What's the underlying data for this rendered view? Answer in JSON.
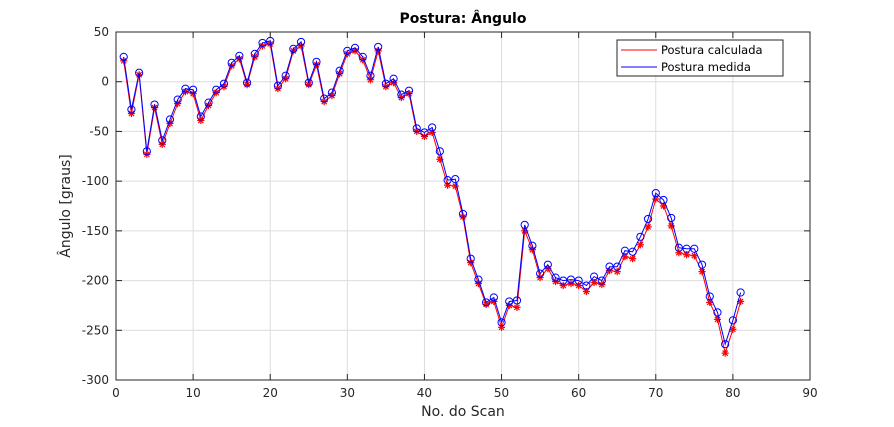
{
  "chart_data": {
    "type": "line",
    "title": "Postura: Ângulo",
    "xlabel": "No. do Scan",
    "ylabel": "Ângulo [graus]",
    "xlim": [
      0,
      90
    ],
    "ylim": [
      -300,
      50
    ],
    "xticks": [
      0,
      10,
      20,
      30,
      40,
      50,
      60,
      70,
      80,
      90
    ],
    "yticks": [
      50,
      0,
      -50,
      -100,
      -150,
      -200,
      -250,
      -300
    ],
    "grid": true,
    "legend_position": "top-right",
    "colors": {
      "series_calc": "#ff0000",
      "series_med": "#0000ff",
      "grid": "#dcdcdc",
      "axis": "#262626"
    },
    "x": [
      1,
      2,
      3,
      4,
      5,
      6,
      7,
      8,
      9,
      10,
      11,
      12,
      13,
      14,
      15,
      16,
      17,
      18,
      19,
      20,
      21,
      22,
      23,
      24,
      25,
      26,
      27,
      28,
      29,
      30,
      31,
      32,
      33,
      34,
      35,
      36,
      37,
      38,
      39,
      40,
      41,
      42,
      43,
      44,
      45,
      46,
      47,
      48,
      49,
      50,
      51,
      52,
      53,
      54,
      55,
      56,
      57,
      58,
      59,
      60,
      61,
      62,
      63,
      64,
      65,
      66,
      67,
      68,
      69,
      70,
      71,
      72,
      73,
      74,
      75,
      76,
      77,
      78,
      79,
      80,
      81
    ],
    "series": [
      {
        "name": "Postura calculada",
        "marker": "asterisk",
        "values": [
          21,
          -32,
          7,
          -73,
          -26,
          -63,
          -42,
          -22,
          -10,
          -12,
          -39,
          -24,
          -11,
          -5,
          16,
          23,
          -3,
          25,
          36,
          38,
          -7,
          3,
          31,
          36,
          -3,
          17,
          -20,
          -14,
          8,
          28,
          31,
          22,
          2,
          31,
          -5,
          -1,
          -16,
          -12,
          -50,
          -55,
          -51,
          -78,
          -104,
          -105,
          -136,
          -182,
          -203,
          -224,
          -221,
          -247,
          -225,
          -227,
          -150,
          -169,
          -197,
          -188,
          -201,
          -205,
          -203,
          -205,
          -211,
          -202,
          -204,
          -190,
          -191,
          -176,
          -178,
          -164,
          -146,
          -118,
          -125,
          -145,
          -172,
          -174,
          -175,
          -191,
          -222,
          -239,
          -273,
          -249,
          -221
        ]
      },
      {
        "name": "Postura medida",
        "marker": "circle",
        "values": [
          25,
          -28,
          9,
          -70,
          -23,
          -59,
          -38,
          -18,
          -7,
          -8,
          -35,
          -21,
          -8,
          -2,
          19,
          26,
          -1,
          28,
          39,
          41,
          -4,
          6,
          33,
          40,
          -1,
          20,
          -17,
          -11,
          11,
          31,
          34,
          25,
          6,
          35,
          -2,
          3,
          -13,
          -9,
          -47,
          -51,
          -46,
          -70,
          -99,
          -98,
          -133,
          -178,
          -199,
          -222,
          -217,
          -242,
          -221,
          -220,
          -144,
          -165,
          -193,
          -184,
          -197,
          -200,
          -199,
          -200,
          -205,
          -196,
          -200,
          -186,
          -186,
          -170,
          -171,
          -156,
          -138,
          -112,
          -119,
          -137,
          -167,
          -168,
          -168,
          -184,
          -216,
          -232,
          -264,
          -240,
          -212
        ]
      }
    ]
  }
}
